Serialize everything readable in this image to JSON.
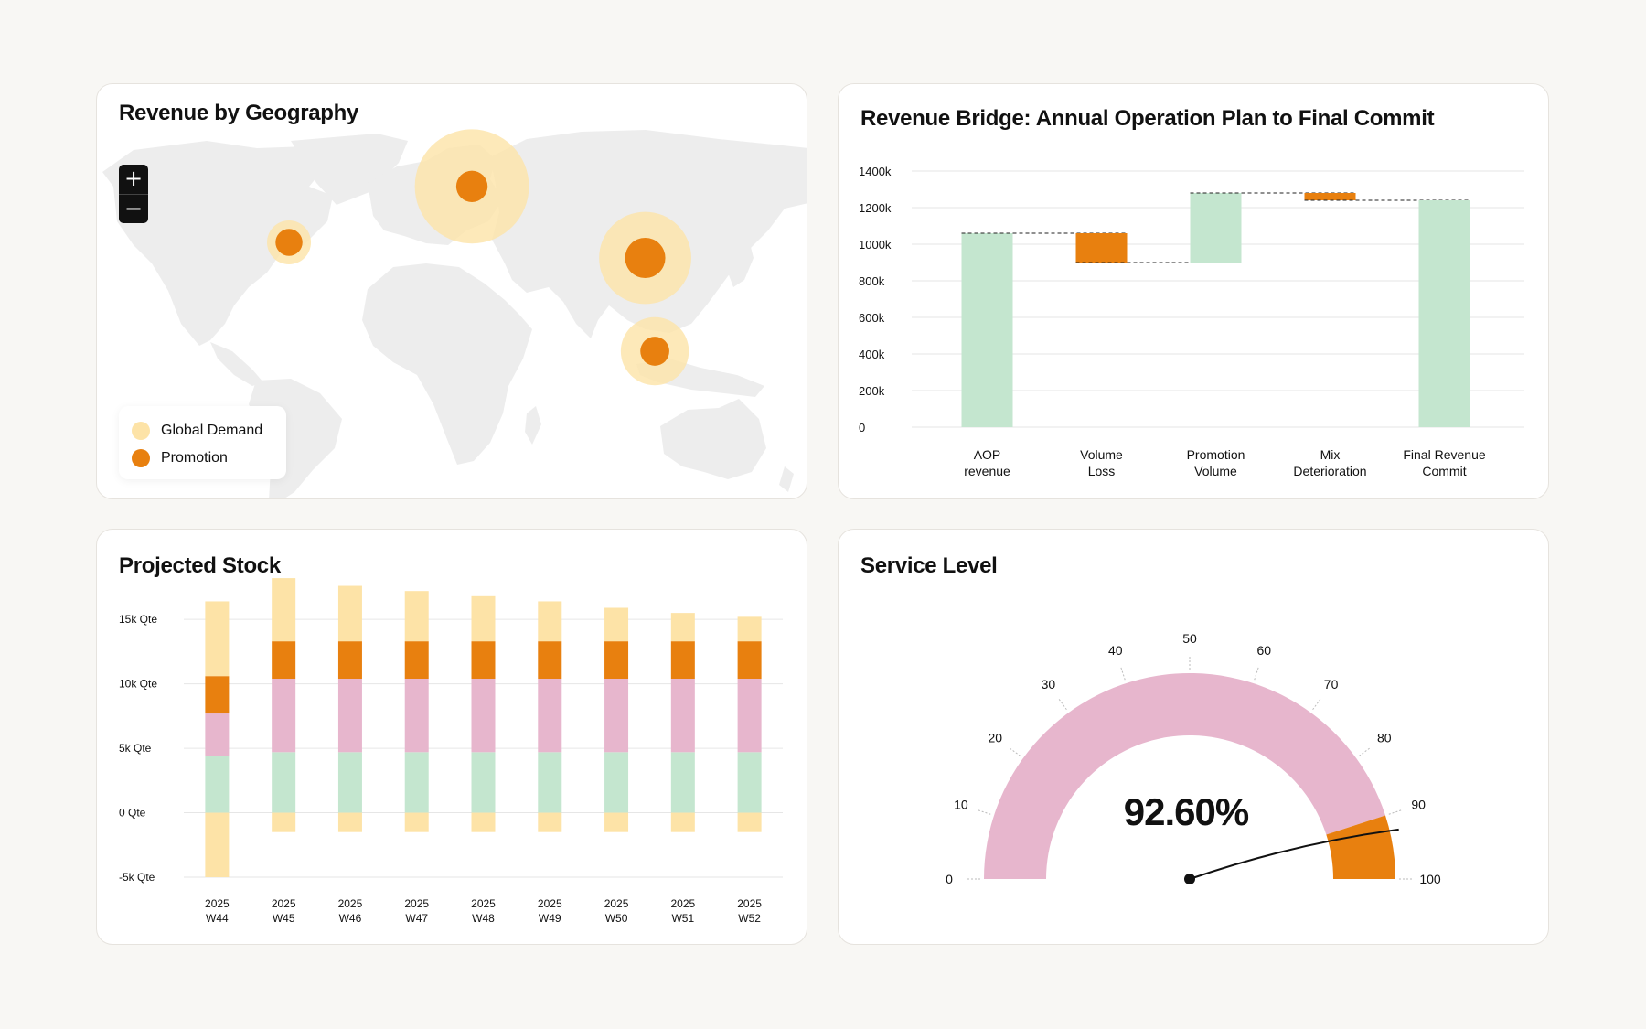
{
  "colors": {
    "green": "#c4e6cf",
    "orange": "#e8800f",
    "light_orange": "#fde3a7",
    "pink": "#e7b6cd",
    "map_land": "#ededed",
    "grid": "#e6e6e6"
  },
  "geo": {
    "title": "Revenue by Geography",
    "zoom_in": "+",
    "zoom_out": "−",
    "legend": [
      {
        "label": "Global Demand",
        "color": "#fde3a7"
      },
      {
        "label": "Promotion",
        "color": "#e8800f"
      }
    ],
    "chart_data": {
      "type": "bubble-map",
      "series": [
        "Global Demand",
        "Promotion"
      ],
      "points": [
        {
          "region": "North America",
          "lon": -85,
          "lat": 30,
          "global_demand": 1.0,
          "promotion": 0.67
        },
        {
          "region": "Europe",
          "lon": 10,
          "lat": 48,
          "global_demand": 2.6,
          "promotion": 0.78
        },
        {
          "region": "Asia",
          "lon": 100,
          "lat": 25,
          "global_demand": 2.1,
          "promotion": 1.0
        },
        {
          "region": "Southeast Asia",
          "lon": 105,
          "lat": -5,
          "global_demand": 1.55,
          "promotion": 0.72
        }
      ]
    }
  },
  "bridge": {
    "title": "Revenue Bridge: Annual Operation Plan to Final Commit",
    "chart_data": {
      "type": "waterfall",
      "y_ticks": [
        0,
        200,
        400,
        600,
        800,
        1000,
        1200,
        1400
      ],
      "y_tick_labels": [
        "0",
        "200k",
        "400k",
        "600k",
        "800k",
        "1000k",
        "1200k",
        "1400k"
      ],
      "ylim": [
        0,
        1400
      ],
      "unit": "k",
      "steps": [
        {
          "label": [
            "AOP",
            "revenue"
          ],
          "start": 0,
          "end": 1060,
          "kind": "total"
        },
        {
          "label": [
            "Volume",
            "Loss"
          ],
          "start": 1060,
          "end": 900,
          "kind": "decrease"
        },
        {
          "label": [
            "Promotion",
            "Volume"
          ],
          "start": 900,
          "end": 1280,
          "kind": "increase"
        },
        {
          "label": [
            "Mix",
            "Deterioration"
          ],
          "start": 1280,
          "end": 1240,
          "kind": "decrease"
        },
        {
          "label": [
            "Final Revenue",
            "Commit"
          ],
          "start": 0,
          "end": 1240,
          "kind": "total"
        }
      ]
    }
  },
  "stock": {
    "title": "Projected Stock",
    "chart_data": {
      "type": "bar",
      "stacked": true,
      "y_ticks": [
        -5,
        0,
        5,
        10,
        15
      ],
      "y_tick_labels": [
        "-5k Qte",
        "0 Qte",
        "5k Qte",
        "10k Qte",
        "15k Qte"
      ],
      "ylim": [
        -5,
        17
      ],
      "unit": "k Qte",
      "categories": [
        [
          "2025",
          "W44"
        ],
        [
          "2025",
          "W45"
        ],
        [
          "2025",
          "W46"
        ],
        [
          "2025",
          "W47"
        ],
        [
          "2025",
          "W48"
        ],
        [
          "2025",
          "W49"
        ],
        [
          "2025",
          "W50"
        ],
        [
          "2025",
          "W51"
        ],
        [
          "2025",
          "W52"
        ]
      ],
      "series": [
        {
          "name": "green",
          "color": "#c4e6cf",
          "values": [
            4.4,
            4.7,
            4.7,
            4.7,
            4.7,
            4.7,
            4.7,
            4.7,
            4.7
          ]
        },
        {
          "name": "pink",
          "color": "#e7b6cd",
          "values": [
            3.3,
            5.7,
            5.7,
            5.7,
            5.7,
            5.7,
            5.7,
            5.7,
            5.7
          ]
        },
        {
          "name": "orange",
          "color": "#e8800f",
          "values": [
            2.9,
            2.9,
            2.9,
            2.9,
            2.9,
            2.9,
            2.9,
            2.9,
            2.9
          ]
        },
        {
          "name": "light",
          "color": "#fde3a7",
          "values": [
            5.8,
            4.9,
            4.3,
            3.9,
            3.5,
            3.1,
            2.6,
            2.2,
            1.9
          ]
        },
        {
          "name": "light-negative",
          "color": "#fde3a7",
          "values": [
            -5.0,
            -1.5,
            -1.5,
            -1.5,
            -1.5,
            -1.5,
            -1.5,
            -1.5,
            -1.5
          ]
        }
      ]
    }
  },
  "service": {
    "title": "Service Level",
    "value_label": "92.60%",
    "chart_data": {
      "type": "gauge",
      "value": 92.6,
      "min": 0,
      "max": 100,
      "ticks": [
        0,
        10,
        20,
        30,
        40,
        50,
        60,
        70,
        80,
        90,
        100
      ],
      "bands": [
        {
          "from": 0,
          "to": 90,
          "color": "#e7b6cd"
        },
        {
          "from": 90,
          "to": 100,
          "color": "#e8800f"
        }
      ]
    }
  }
}
